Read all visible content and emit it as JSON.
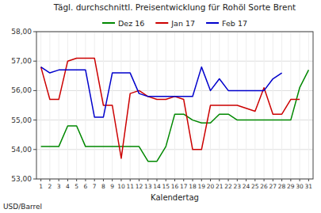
{
  "chart_data": {
    "type": "line",
    "title": "Tägl. durchschnittl. Preisentwicklung für Rohöl Sorte Brent",
    "xlabel": "Kalendertag",
    "ylabel": "USD/Barrel",
    "x": [
      1,
      2,
      3,
      4,
      5,
      6,
      7,
      8,
      9,
      10,
      11,
      12,
      13,
      14,
      15,
      16,
      17,
      18,
      19,
      20,
      21,
      22,
      23,
      24,
      25,
      26,
      27,
      28,
      29,
      30,
      31
    ],
    "xlim": [
      0.5,
      31.5
    ],
    "xticks": [
      1,
      2,
      3,
      4,
      5,
      6,
      7,
      8,
      9,
      10,
      11,
      12,
      13,
      14,
      15,
      16,
      17,
      18,
      19,
      20,
      21,
      22,
      23,
      24,
      25,
      26,
      27,
      28,
      29,
      30,
      31
    ],
    "ylim": [
      53.0,
      58.0
    ],
    "yticks": [
      {
        "value": 53.0,
        "label": "53,00"
      },
      {
        "value": 54.0,
        "label": "54,00"
      },
      {
        "value": 55.0,
        "label": "55,00"
      },
      {
        "value": 56.0,
        "label": "56,00"
      },
      {
        "value": 57.0,
        "label": "57,00"
      },
      {
        "value": 58.0,
        "label": "58,00"
      }
    ],
    "grid": true,
    "legend": "top",
    "series": [
      {
        "name": "Dez 16",
        "color": "#008800",
        "values": [
          54.1,
          54.1,
          54.1,
          54.8,
          54.8,
          54.1,
          54.1,
          54.1,
          54.1,
          54.1,
          54.1,
          54.1,
          53.6,
          53.6,
          54.1,
          55.2,
          55.2,
          55.0,
          54.9,
          54.9,
          55.2,
          55.2,
          55.0,
          55.0,
          55.0,
          55.0,
          55.0,
          55.0,
          55.0,
          56.1,
          56.7
        ]
      },
      {
        "name": "Jan 17",
        "color": "#CC0000",
        "values": [
          56.8,
          55.7,
          55.7,
          57.0,
          57.1,
          57.1,
          57.1,
          55.5,
          55.5,
          53.7,
          55.9,
          56.0,
          55.8,
          55.7,
          55.7,
          55.8,
          55.7,
          54.0,
          54.0,
          55.5,
          55.5,
          55.5,
          55.5,
          55.4,
          55.3,
          56.1,
          55.2,
          55.2,
          55.7,
          55.7,
          null
        ]
      },
      {
        "name": "Feb 17",
        "color": "#0000CC",
        "values": [
          56.8,
          56.6,
          56.7,
          56.7,
          56.7,
          56.7,
          55.1,
          55.1,
          56.6,
          56.6,
          56.6,
          55.9,
          55.8,
          55.8,
          55.8,
          55.8,
          55.8,
          55.8,
          56.8,
          56.0,
          56.4,
          56.0,
          56.0,
          56.0,
          56.0,
          56.0,
          56.4,
          56.6,
          null,
          null,
          null
        ]
      }
    ]
  }
}
